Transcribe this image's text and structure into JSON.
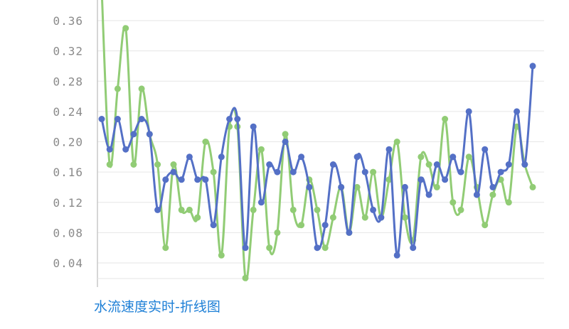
{
  "chart_data": {
    "type": "line",
    "title": "水流速度实时-折线图",
    "xlabel": "",
    "ylabel": "",
    "ylim": [
      0.0,
      0.39
    ],
    "y_ticks": [
      "0.04",
      "0.08",
      "0.12",
      "0.16",
      "0.20",
      "0.24",
      "0.28",
      "0.32",
      "0.36"
    ],
    "grid": true,
    "legend": "none",
    "series": [
      {
        "color": "#5470c6",
        "values": [
          0.23,
          0.19,
          0.23,
          0.19,
          0.21,
          0.23,
          0.21,
          0.11,
          0.15,
          0.16,
          0.15,
          0.18,
          0.15,
          0.15,
          0.09,
          0.18,
          0.23,
          0.23,
          0.06,
          0.22,
          0.12,
          0.17,
          0.16,
          0.2,
          0.16,
          0.18,
          0.14,
          0.06,
          0.09,
          0.17,
          0.14,
          0.08,
          0.18,
          0.16,
          0.11,
          0.1,
          0.19,
          0.05,
          0.14,
          0.06,
          0.15,
          0.13,
          0.17,
          0.15,
          0.18,
          0.16,
          0.24,
          0.13,
          0.19,
          0.14,
          0.16,
          0.17,
          0.24,
          0.17,
          0.3
        ]
      },
      {
        "color": "#91cc75",
        "values": [
          0.4,
          0.17,
          0.27,
          0.35,
          0.17,
          0.27,
          0.21,
          0.17,
          0.06,
          0.17,
          0.11,
          0.11,
          0.1,
          0.2,
          0.16,
          0.05,
          0.22,
          0.22,
          0.02,
          0.11,
          0.19,
          0.06,
          0.08,
          0.21,
          0.11,
          0.09,
          0.15,
          0.11,
          0.06,
          0.1,
          0.14,
          0.08,
          0.14,
          0.1,
          0.16,
          0.1,
          0.15,
          0.2,
          0.1,
          0.07,
          0.18,
          0.17,
          0.14,
          0.23,
          0.12,
          0.11,
          0.18,
          0.14,
          0.09,
          0.13,
          0.15,
          0.12,
          0.22,
          0.17,
          0.14
        ]
      }
    ]
  }
}
